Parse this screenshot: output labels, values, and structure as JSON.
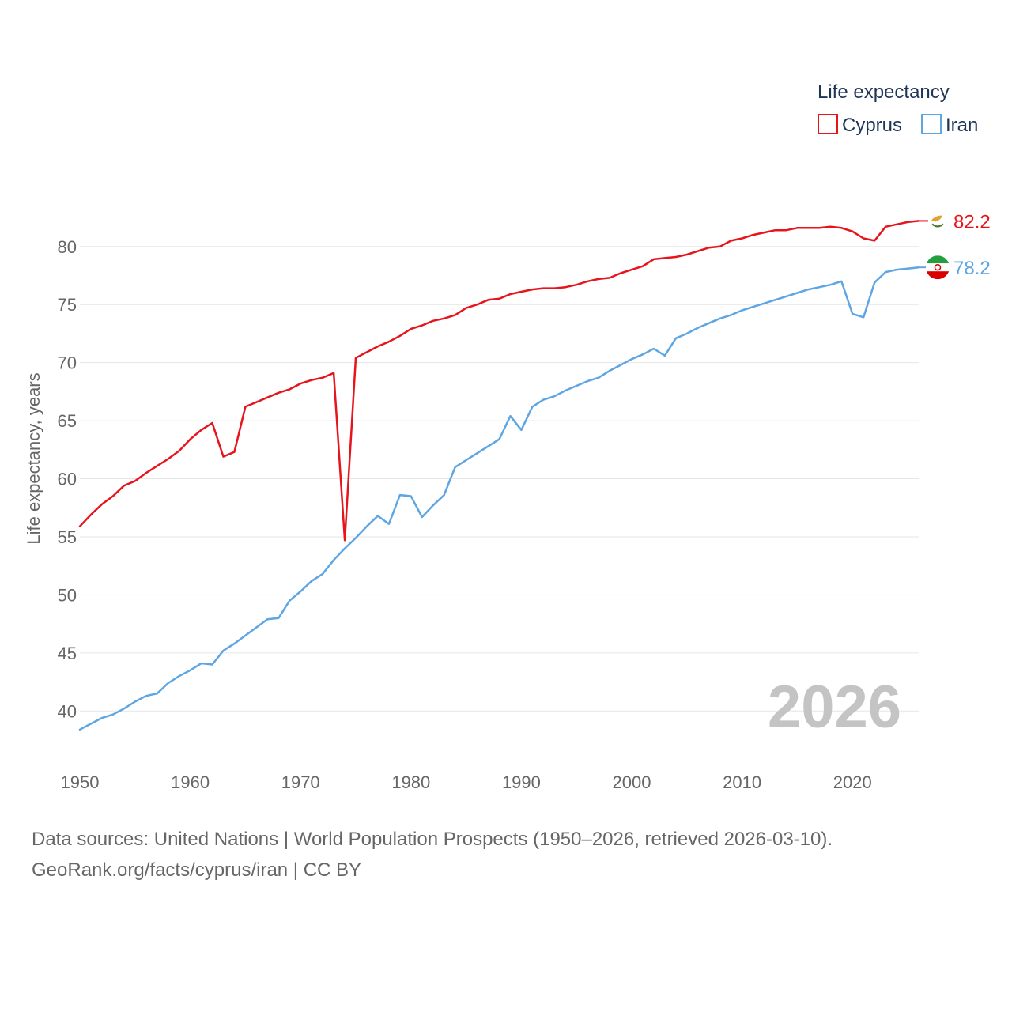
{
  "chart_data": {
    "type": "line",
    "title": "",
    "legend_title": "Life expectancy",
    "legend_position": "top-right",
    "xlabel": "",
    "ylabel": "Life expectancy, years",
    "xlim": [
      1950,
      2026
    ],
    "ylim": [
      36,
      84
    ],
    "x_ticks": [
      "1950",
      "1960",
      "1970",
      "1980",
      "1990",
      "2000",
      "2010",
      "2020"
    ],
    "y_ticks": [
      "40",
      "45",
      "50",
      "55",
      "60",
      "65",
      "70",
      "75",
      "80"
    ],
    "grid": true,
    "year_label": "2026",
    "x": [
      1950,
      1951,
      1952,
      1953,
      1954,
      1955,
      1956,
      1957,
      1958,
      1959,
      1960,
      1961,
      1962,
      1963,
      1964,
      1965,
      1966,
      1967,
      1968,
      1969,
      1970,
      1971,
      1972,
      1973,
      1974,
      1975,
      1976,
      1977,
      1978,
      1979,
      1980,
      1981,
      1982,
      1983,
      1984,
      1985,
      1986,
      1987,
      1988,
      1989,
      1990,
      1991,
      1992,
      1993,
      1994,
      1995,
      1996,
      1997,
      1998,
      1999,
      2000,
      2001,
      2002,
      2003,
      2004,
      2005,
      2006,
      2007,
      2008,
      2009,
      2010,
      2011,
      2012,
      2013,
      2014,
      2015,
      2016,
      2017,
      2018,
      2019,
      2020,
      2021,
      2022,
      2023,
      2024,
      2025,
      2026
    ],
    "series": [
      {
        "name": "Cyprus",
        "color": "#e8141c",
        "end_label": "82.2",
        "flag_icon": "cyprus-flag-icon",
        "values": [
          55.9,
          56.9,
          57.8,
          58.5,
          59.4,
          59.8,
          60.5,
          61.1,
          61.7,
          62.4,
          63.4,
          64.2,
          64.8,
          61.9,
          62.3,
          66.2,
          66.6,
          67.0,
          67.4,
          67.7,
          68.2,
          68.5,
          68.7,
          69.1,
          54.7,
          70.4,
          70.9,
          71.4,
          71.8,
          72.3,
          72.9,
          73.2,
          73.6,
          73.8,
          74.1,
          74.7,
          75.0,
          75.4,
          75.5,
          75.9,
          76.1,
          76.3,
          76.4,
          76.4,
          76.5,
          76.7,
          77.0,
          77.2,
          77.3,
          77.7,
          78.0,
          78.3,
          78.9,
          79.0,
          79.1,
          79.3,
          79.6,
          79.9,
          80.0,
          80.5,
          80.7,
          81.0,
          81.2,
          81.4,
          81.4,
          81.6,
          81.6,
          81.6,
          81.7,
          81.6,
          81.3,
          80.7,
          80.5,
          81.7,
          81.9,
          82.1,
          82.2
        ]
      },
      {
        "name": "Iran",
        "color": "#5ea5e3",
        "end_label": "78.2",
        "flag_icon": "iran-flag-icon",
        "values": [
          38.4,
          38.9,
          39.4,
          39.7,
          40.2,
          40.8,
          41.3,
          41.5,
          42.4,
          43.0,
          43.5,
          44.1,
          44.0,
          45.2,
          45.8,
          46.5,
          47.2,
          47.9,
          48.0,
          49.5,
          50.3,
          51.2,
          51.8,
          53.0,
          54.0,
          54.9,
          55.9,
          56.8,
          56.1,
          58.6,
          58.5,
          56.7,
          57.7,
          58.6,
          61.0,
          61.6,
          62.2,
          62.8,
          63.4,
          65.4,
          64.2,
          66.2,
          66.8,
          67.1,
          67.6,
          68.0,
          68.4,
          68.7,
          69.3,
          69.8,
          70.3,
          70.7,
          71.2,
          70.6,
          72.1,
          72.5,
          73.0,
          73.4,
          73.8,
          74.1,
          74.5,
          74.8,
          75.1,
          75.4,
          75.7,
          76.0,
          76.3,
          76.5,
          76.7,
          77.0,
          74.2,
          73.9,
          76.9,
          77.8,
          78.0,
          78.1,
          78.2
        ]
      }
    ]
  },
  "footer": {
    "source_line": "Data sources: United Nations | World Population Prospects (1950–2026, retrieved 2026-03-10).",
    "license_line": "GeoRank.org/facts/cyprus/iran | CC BY"
  }
}
